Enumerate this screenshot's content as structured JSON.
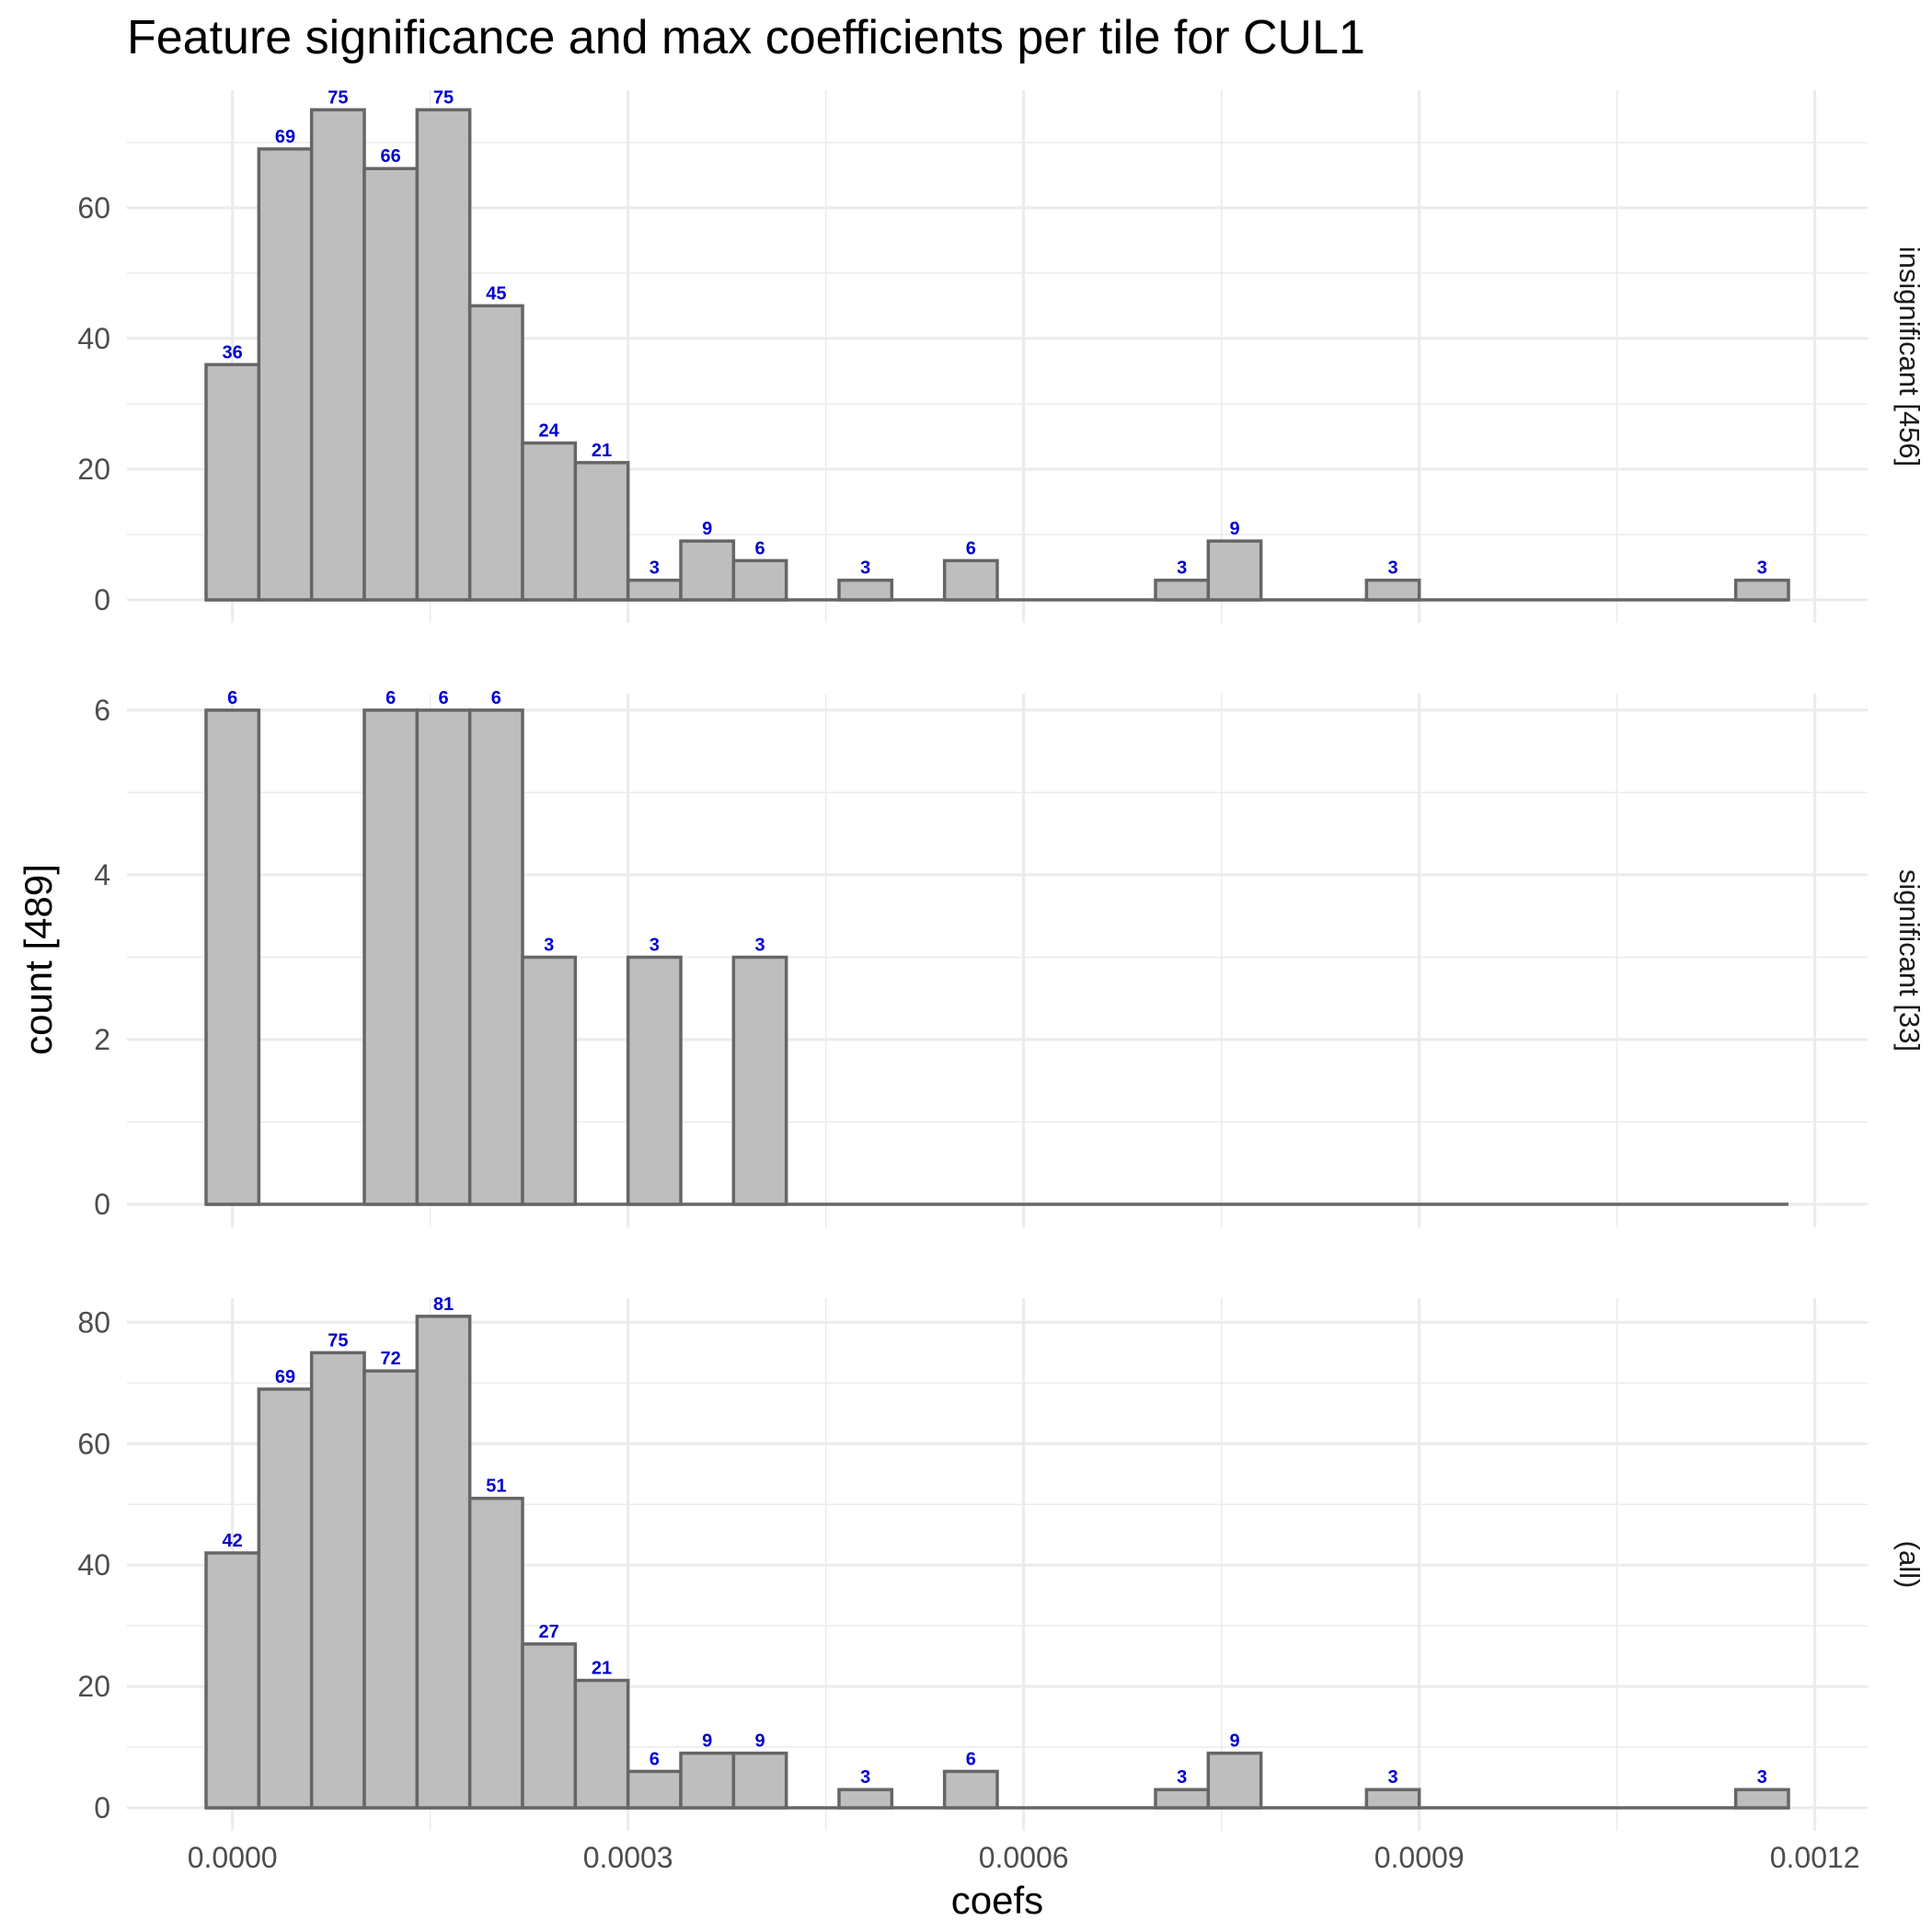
{
  "chart_data": {
    "type": "bar",
    "title": "Feature significance and max coefficients per tile for CUL1",
    "xlabel": "coefs",
    "ylabel": "count [489]",
    "x_ticks": [
      "0.0000",
      "0.0003",
      "0.0006",
      "0.0009",
      "0.0012"
    ],
    "x_tick_values": [
      0,
      0.0003,
      0.0006,
      0.0009,
      0.0012
    ],
    "xlim": [
      -8e-05,
      0.00124
    ],
    "bin_width": 4e-05,
    "bin_start": -2e-05,
    "bin_count": 30,
    "grid": true,
    "bar_color": "#bebebe",
    "bar_edge_color": "#666666",
    "label_color": "#0000cc",
    "panels": [
      {
        "strip": "insignificant [456]",
        "ylim": [
          0,
          78
        ],
        "y_ticks": [
          0,
          20,
          40,
          60
        ],
        "counts": [
          36,
          69,
          75,
          66,
          75,
          45,
          24,
          21,
          3,
          9,
          6,
          0,
          3,
          0,
          6,
          0,
          0,
          0,
          3,
          9,
          0,
          0,
          3,
          0,
          0,
          0,
          0,
          0,
          0,
          3
        ]
      },
      {
        "strip": "significant [33]",
        "ylim": [
          0,
          6.2
        ],
        "y_ticks": [
          0,
          2,
          4,
          6
        ],
        "counts": [
          6,
          0,
          0,
          6,
          6,
          6,
          3,
          0,
          3,
          0,
          3,
          0,
          0,
          0,
          0,
          0,
          0,
          0,
          0,
          0,
          0,
          0,
          0,
          0,
          0,
          0,
          0,
          0,
          0,
          0
        ]
      },
      {
        "strip": "(all)",
        "ylim": [
          0,
          84
        ],
        "y_ticks": [
          0,
          20,
          40,
          60,
          80
        ],
        "counts": [
          42,
          69,
          75,
          72,
          81,
          51,
          27,
          21,
          6,
          9,
          9,
          0,
          3,
          0,
          6,
          0,
          0,
          0,
          3,
          9,
          0,
          0,
          3,
          0,
          0,
          0,
          0,
          0,
          0,
          3
        ]
      }
    ]
  }
}
